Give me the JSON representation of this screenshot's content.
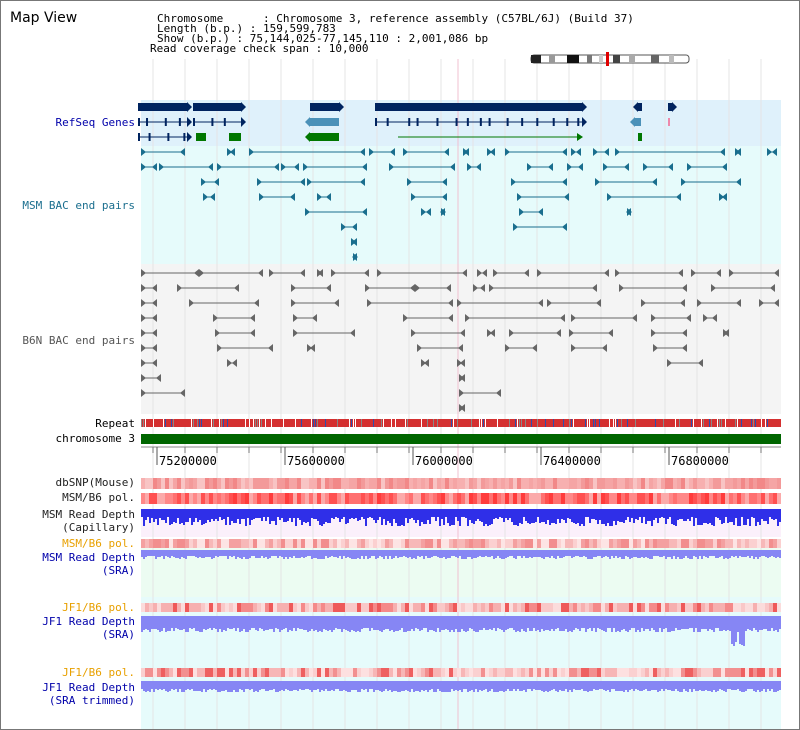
{
  "page": {
    "title": "Map View"
  },
  "header": {
    "chromosome": "Chromosome      : Chromosome 3, reference assembly (C57BL/6J) (Build 37)",
    "length": "Length (b.p.) : 159,599,783",
    "show": "Show (b.p.) : 75,144,025-77,145,110 : 2,001,086 bp",
    "span": "Read coverage check span : 10,000"
  },
  "tracks": {
    "refseq": {
      "label": "RefSeq Genes",
      "color": "#0000aa"
    },
    "msm_bac": {
      "label": "MSM BAC end pairs",
      "color": "#1a6e8e"
    },
    "b6n_bac": {
      "label": "B6N BAC end pairs",
      "color": "#555555"
    },
    "repeat": {
      "label": "Repeat"
    },
    "chromosome": {
      "label": "chromosome 3",
      "color": "#006600"
    },
    "dbsnp": {
      "label": "dbSNP(Mouse)"
    },
    "msm_b6_pol_1": {
      "label": "MSM/B6 pol."
    },
    "msm_depth_cap": {
      "label": "MSM Read Depth\n(Capillary)"
    },
    "msm_b6_pol_2": {
      "label": "MSM/B6 pol.",
      "color": "#e8a000"
    },
    "msm_depth_sra": {
      "label": "MSM Read Depth\n(SRA)",
      "color": "#0000aa"
    },
    "jf1_b6_pol_1": {
      "label": "JF1/B6 pol.",
      "color": "#e8a000"
    },
    "jf1_depth_sra": {
      "label": "JF1 Read Depth\n(SRA)",
      "color": "#0000aa"
    },
    "jf1_b6_pol_2": {
      "label": "JF1/B6 pol.",
      "color": "#e8a000"
    },
    "jf1_depth_trim": {
      "label": "JF1 Read Depth\n(SRA trimmed)",
      "color": "#0000aa"
    }
  },
  "axis": {
    "ticks": [
      "75200000",
      "75600000",
      "76000000",
      "76400000",
      "76800000"
    ]
  },
  "colors": {
    "refseq_bg": "#dff1fb",
    "msm_bg": "#e6fbfb",
    "b6n_bg": "#f4f4f4",
    "capillary_bg": "#fbf0fb",
    "sra_bg": "#ecfcf2",
    "jf1_bg": "#e6fbfb",
    "gene_dark": "#00235f",
    "gene_mid": "#4b91b8",
    "gene_green": "#007700",
    "msm_feature": "#1a6e8e",
    "b6n_feature": "#666666",
    "depth_blue": "#2f2fe8",
    "depth_light": "#8686f4"
  }
}
